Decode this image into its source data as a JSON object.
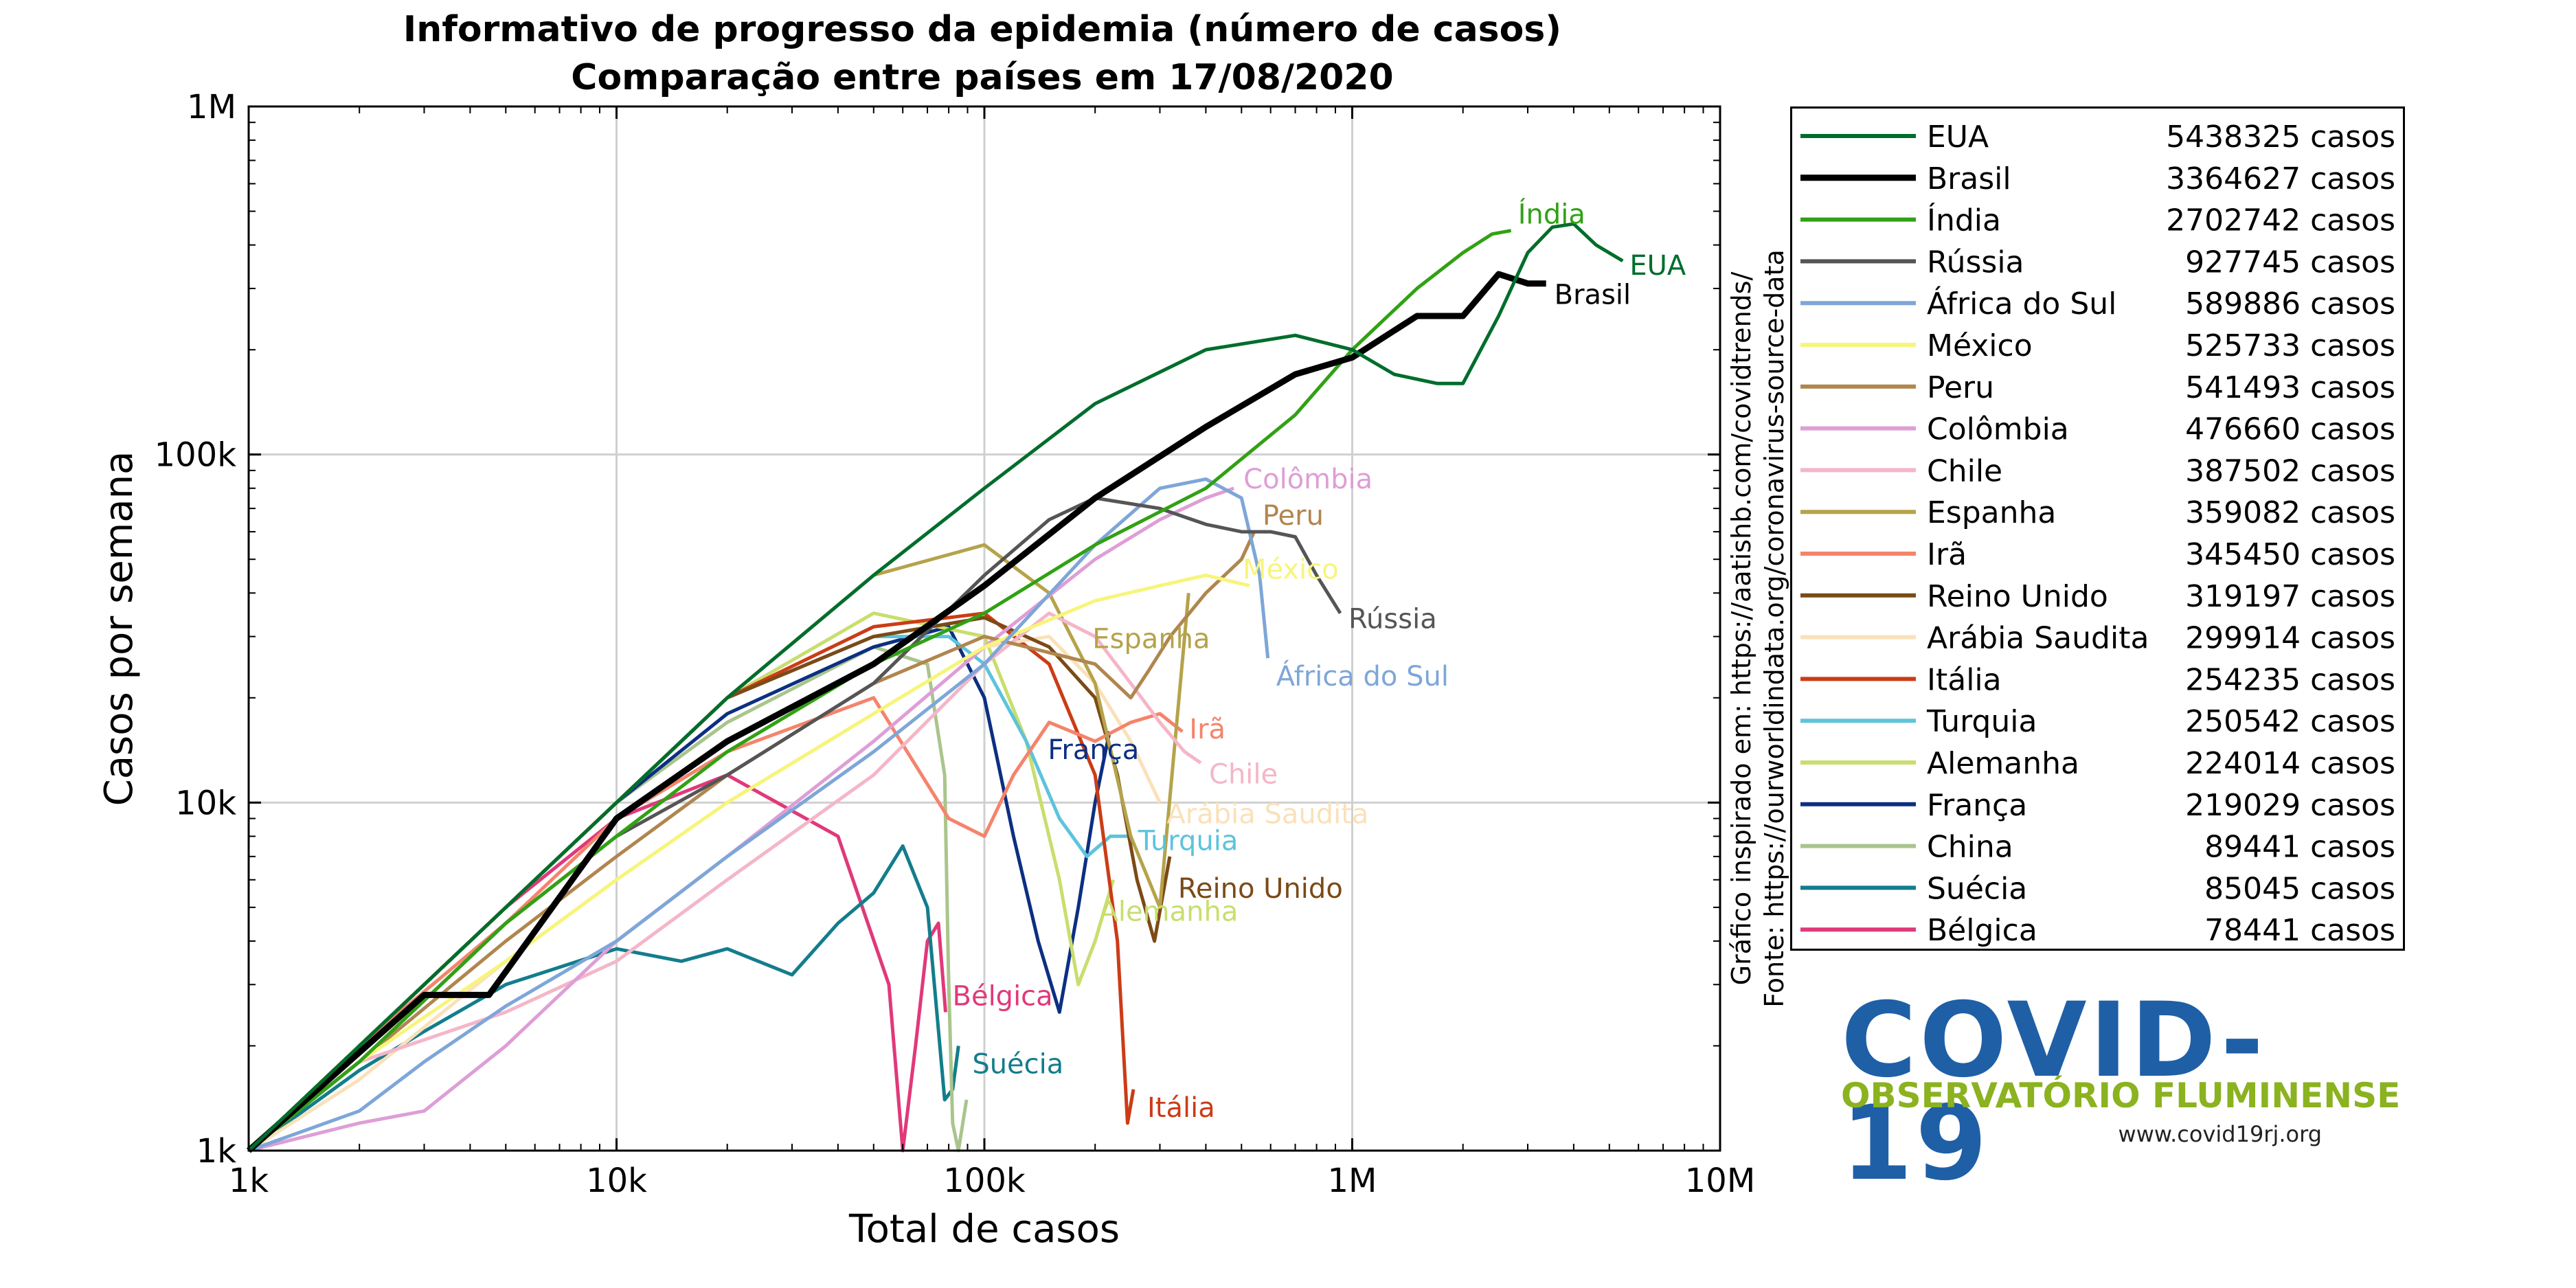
{
  "chart_data": {
    "type": "line",
    "title": "Informativo de progresso da epidemia (número de casos)",
    "subtitle": "Comparação entre países em 17/08/2020",
    "xlabel": "Total de casos",
    "ylabel": "Casos por semana",
    "xscale": "log",
    "yscale": "log",
    "xlim": [
      1000,
      10000000
    ],
    "ylim": [
      1000,
      1000000
    ],
    "xticks": [
      "1k",
      "10k",
      "100k",
      "1M",
      "10M"
    ],
    "yticks": [
      "1k",
      "10k",
      "100k",
      "1M"
    ],
    "grid": true,
    "legend_position": "right",
    "source_note": "Gráfico inspirado em: https://aatishb.com/covidtrends/",
    "source_note2": "Fonte: https://ourworldindata.org/coronavirus-source-data",
    "series": [
      {
        "name": "EUA",
        "total": "5438325 casos",
        "color": "#006d2c",
        "label": "EUA",
        "x": [
          1000,
          2000,
          5000,
          10000,
          20000,
          50000,
          100000,
          200000,
          400000,
          700000,
          1000000,
          1300000,
          1700000,
          2000000,
          2500000,
          3000000,
          3500000,
          4000000,
          4600000,
          5438325
        ],
        "y": [
          1000,
          2000,
          5000,
          10000,
          20000,
          45000,
          80000,
          140000,
          200000,
          220000,
          200000,
          170000,
          160000,
          160000,
          250000,
          380000,
          450000,
          460000,
          400000,
          360000
        ]
      },
      {
        "name": "Brasil",
        "total": "3364627 casos",
        "color": "#000000",
        "label": "Brasil",
        "x": [
          1000,
          3000,
          4500,
          10000,
          20000,
          50000,
          100000,
          200000,
          400000,
          700000,
          1000000,
          1500000,
          2000000,
          2500000,
          3000000,
          3364627
        ],
        "y": [
          1000,
          2800,
          2800,
          9000,
          15000,
          25000,
          42000,
          75000,
          120000,
          170000,
          190000,
          250000,
          250000,
          330000,
          310000,
          310000
        ]
      },
      {
        "name": "Índia",
        "total": "2702742 casos",
        "color": "#31a114",
        "label": "Índia",
        "x": [
          1000,
          2000,
          5000,
          10000,
          20000,
          50000,
          100000,
          200000,
          400000,
          700000,
          1000000,
          1500000,
          2000000,
          2400000,
          2702742
        ],
        "y": [
          1000,
          1800,
          4500,
          8000,
          14000,
          25000,
          35000,
          55000,
          80000,
          130000,
          200000,
          300000,
          380000,
          430000,
          440000
        ]
      },
      {
        "name": "Rússia",
        "total": "927745 casos",
        "color": "#555555",
        "label": "Rússia",
        "x": [
          1000,
          2000,
          5000,
          10000,
          20000,
          50000,
          100000,
          150000,
          200000,
          300000,
          400000,
          500000,
          600000,
          700000,
          800000,
          927745
        ],
        "y": [
          1000,
          1800,
          4500,
          8000,
          12000,
          22000,
          45000,
          65000,
          75000,
          70000,
          63000,
          60000,
          60000,
          58000,
          45000,
          35000
        ]
      },
      {
        "name": "África do Sul",
        "total": "589886 casos",
        "color": "#7ea6d8",
        "label": "África do Sul",
        "x": [
          1000,
          2000,
          3000,
          5000,
          10000,
          20000,
          50000,
          100000,
          200000,
          300000,
          400000,
          500000,
          560000,
          589886
        ],
        "y": [
          1000,
          1300,
          1800,
          2600,
          4000,
          7000,
          14000,
          25000,
          55000,
          80000,
          85000,
          75000,
          45000,
          26000
        ]
      },
      {
        "name": "México",
        "total": "525733 casos",
        "color": "#f7f57a",
        "label": "México",
        "x": [
          1000,
          2000,
          5000,
          10000,
          20000,
          50000,
          100000,
          200000,
          300000,
          400000,
          525733
        ],
        "y": [
          1000,
          1800,
          3500,
          6000,
          10000,
          18000,
          28000,
          38000,
          42000,
          45000,
          42000
        ]
      },
      {
        "name": "Peru",
        "total": "541493 casos",
        "color": "#b0864f",
        "label": "Peru",
        "x": [
          1000,
          2000,
          5000,
          10000,
          20000,
          50000,
          100000,
          200000,
          250000,
          280000,
          320000,
          400000,
          500000,
          541493
        ],
        "y": [
          1000,
          1800,
          4000,
          7000,
          12000,
          22000,
          30000,
          25000,
          20000,
          24000,
          30000,
          40000,
          50000,
          60000
        ]
      },
      {
        "name": "Colômbia",
        "total": "476660 casos",
        "color": "#de9ed6",
        "label": "Colômbia",
        "x": [
          1000,
          2000,
          3000,
          5000,
          10000,
          20000,
          50000,
          100000,
          200000,
          300000,
          400000,
          476660
        ],
        "y": [
          1000,
          1200,
          1300,
          2000,
          4000,
          7000,
          15000,
          28000,
          50000,
          65000,
          75000,
          80000
        ]
      },
      {
        "name": "Chile",
        "total": "387502 casos",
        "color": "#f4b6c8",
        "label": "Chile",
        "x": [
          1000,
          2000,
          5000,
          10000,
          20000,
          50000,
          100000,
          150000,
          200000,
          250000,
          300000,
          350000,
          387502
        ],
        "y": [
          1000,
          1800,
          2500,
          3500,
          6000,
          12000,
          25000,
          35000,
          30000,
          22000,
          17000,
          14000,
          13000
        ]
      },
      {
        "name": "Espanha",
        "total": "359082 casos",
        "color": "#b5a34b",
        "label": "Espanha",
        "x": [
          1000,
          2000,
          5000,
          10000,
          20000,
          50000,
          100000,
          150000,
          200000,
          250000,
          300000,
          359082
        ],
        "y": [
          1000,
          2000,
          5000,
          10000,
          20000,
          45000,
          55000,
          40000,
          22000,
          8000,
          5000,
          40000
        ]
      },
      {
        "name": "Irã",
        "total": "345450 casos",
        "color": "#f4846b",
        "label": "Irã",
        "x": [
          1000,
          2000,
          5000,
          10000,
          20000,
          50000,
          80000,
          100000,
          120000,
          150000,
          200000,
          250000,
          300000,
          345450
        ],
        "y": [
          1000,
          2000,
          4500,
          9000,
          14000,
          20000,
          9000,
          8000,
          12000,
          17000,
          15000,
          17000,
          18000,
          16000
        ]
      },
      {
        "name": "Reino Unido",
        "total": "319197 casos",
        "color": "#7b4a17",
        "label": "Reino Unido",
        "x": [
          1000,
          2000,
          5000,
          10000,
          20000,
          50000,
          100000,
          150000,
          200000,
          230000,
          260000,
          290000,
          319197
        ],
        "y": [
          1000,
          2000,
          5000,
          10000,
          20000,
          30000,
          34000,
          28000,
          20000,
          12000,
          6000,
          4000,
          7000
        ]
      },
      {
        "name": "Arábia Saudita",
        "total": "299914 casos",
        "color": "#fae1ba",
        "label": "Arábia Saudita",
        "x": [
          1000,
          2000,
          5000,
          10000,
          20000,
          50000,
          100000,
          150000,
          200000,
          250000,
          299914
        ],
        "y": [
          1000,
          1600,
          3500,
          6000,
          10000,
          18000,
          28000,
          30000,
          22000,
          15000,
          10000
        ]
      },
      {
        "name": "Itália",
        "total": "254235 casos",
        "color": "#cb3c16",
        "label": "Itália",
        "x": [
          1000,
          2000,
          5000,
          10000,
          20000,
          50000,
          100000,
          150000,
          200000,
          230000,
          245000,
          254235
        ],
        "y": [
          1000,
          2000,
          5000,
          10000,
          20000,
          32000,
          35000,
          25000,
          12000,
          4000,
          1200,
          1500
        ]
      },
      {
        "name": "Turquia",
        "total": "250542 casos",
        "color": "#5dc3dc",
        "label": "Turquia",
        "x": [
          1000,
          2000,
          5000,
          10000,
          20000,
          50000,
          80000,
          100000,
          130000,
          160000,
          190000,
          220000,
          250542
        ],
        "y": [
          1000,
          2000,
          5000,
          10000,
          20000,
          30000,
          30000,
          25000,
          15000,
          9000,
          7000,
          8000,
          8000
        ]
      },
      {
        "name": "Alemanha",
        "total": "224014 casos",
        "color": "#c8de6e",
        "label": "Alemanha",
        "x": [
          1000,
          2000,
          5000,
          10000,
          20000,
          50000,
          100000,
          130000,
          160000,
          180000,
          200000,
          224014
        ],
        "y": [
          1000,
          2000,
          5000,
          10000,
          20000,
          35000,
          30000,
          15000,
          6000,
          3000,
          4000,
          6000
        ]
      },
      {
        "name": "França",
        "total": "219029 casos",
        "color": "#0c2f82",
        "label": "França",
        "x": [
          1000,
          2000,
          5000,
          10000,
          20000,
          50000,
          80000,
          100000,
          120000,
          140000,
          160000,
          180000,
          200000,
          219029
        ],
        "y": [
          1000,
          2000,
          5000,
          10000,
          18000,
          28000,
          32000,
          20000,
          8000,
          4000,
          2500,
          5000,
          10000,
          16000
        ]
      },
      {
        "name": "China",
        "total": "89441 casos",
        "color": "#a9c58c",
        "label": "",
        "x": [
          1000,
          2000,
          5000,
          10000,
          20000,
          50000,
          70000,
          78000,
          80000,
          82000,
          85000,
          89441
        ],
        "y": [
          1000,
          2000,
          5000,
          10000,
          17000,
          28000,
          25000,
          12000,
          3000,
          1200,
          1000,
          1400
        ]
      },
      {
        "name": "Suécia",
        "total": "85045 casos",
        "color": "#137d8c",
        "label": "Suécia",
        "x": [
          1000,
          2000,
          3000,
          5000,
          10000,
          15000,
          20000,
          30000,
          40000,
          50000,
          60000,
          70000,
          78000,
          82000,
          85045
        ],
        "y": [
          1000,
          1700,
          2200,
          3000,
          3800,
          3500,
          3800,
          3200,
          4500,
          5500,
          7500,
          5000,
          1400,
          1500,
          2000
        ]
      },
      {
        "name": "Bélgica",
        "total": "78441 casos",
        "color": "#e0397a",
        "label": "Bélgica",
        "x": [
          1000,
          2000,
          5000,
          10000,
          20000,
          40000,
          55000,
          60000,
          65000,
          70000,
          75000,
          78441
        ],
        "y": [
          1000,
          2000,
          5000,
          9000,
          12000,
          8000,
          3000,
          1000,
          2000,
          4000,
          4500,
          2500
        ]
      }
    ]
  },
  "legend": {
    "items_ref": "chart_data.series"
  },
  "logo": {
    "title": "COVID-19",
    "subtitle": "OBSERVATÓRIO FLUMINENSE",
    "url": "www.covid19rj.org",
    "title_color": "#1f5fa6",
    "subtitle_color": "#8bb21f"
  }
}
